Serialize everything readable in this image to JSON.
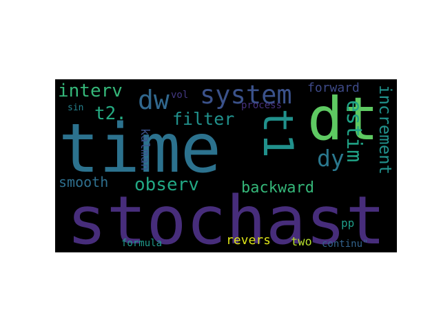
{
  "word_cloud": {
    "background": "#000000",
    "words": {
      "stochast": {
        "text": "stochast",
        "color": "#472d7b"
      },
      "time": {
        "text": "time",
        "color": "#2c728e"
      },
      "dt": {
        "text": "dt",
        "color": "#5ec962"
      },
      "t1": {
        "text": "t1",
        "color": "#21918c"
      },
      "system": {
        "text": "system",
        "color": "#3b528b"
      },
      "dw": {
        "text": "dw",
        "color": "#31688e"
      },
      "interv": {
        "text": "interv",
        "color": "#35b779"
      },
      "t2": {
        "text": "t2.",
        "color": "#25ab82"
      },
      "filter": {
        "text": "filter",
        "color": "#21918c"
      },
      "observ": {
        "text": "observ",
        "color": "#22a884"
      },
      "estim": {
        "text": "estim",
        "color": "#20a386"
      },
      "dy": {
        "text": "dy",
        "color": "#2a788e"
      },
      "increment": {
        "text": "increment",
        "color": "#21918c"
      },
      "forward": {
        "text": "forward",
        "color": "#3e4a89"
      },
      "backward": {
        "text": "backward",
        "color": "#35b779"
      },
      "smooth": {
        "text": "smooth",
        "color": "#2e6f8e"
      },
      "kalman": {
        "text": "kalman",
        "color": "#3b528b"
      },
      "vol": {
        "text": "vol",
        "color": "#443983"
      },
      "process": {
        "text": "process",
        "color": "#46327e"
      },
      "sin": {
        "text": "sin",
        "color": "#26828e"
      },
      "pp": {
        "text": "pp",
        "color": "#1f9e89"
      },
      "revers": {
        "text": "revers",
        "color": "#dde318"
      },
      "two": {
        "text": "two",
        "color": "#b5de2b"
      },
      "formula": {
        "text": "formula",
        "color": "#1f9a8a"
      },
      "continu": {
        "text": "continu\"",
        "color": "#33638d"
      }
    }
  }
}
